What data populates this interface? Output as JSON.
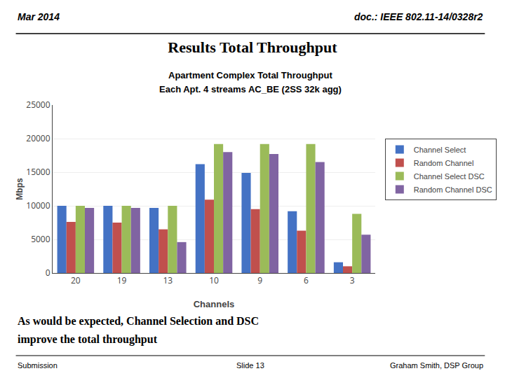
{
  "chart_data": {
    "type": "bar",
    "title": "Results Total Throughput",
    "annotations": [
      "Mar 2014",
      "doc.: IEEE 802.11-14/0328r2",
      "Apartment Complex Total Throughput",
      "Each Apt. 4 streams AC_BE (2SS 32k agg)",
      "As would be expected, Channel Selection and DSC",
      "improve the total throughput",
      "Submission",
      "Slide 13",
      "Graham Smith, DSP Group"
    ],
    "x_label": "Channels",
    "y_label": "Mbps",
    "categories": [
      "20",
      "19",
      "13",
      "10",
      "9",
      "6",
      "3"
    ],
    "series": [
      {
        "name": "Channel Select",
        "color": "#4472C4",
        "values": [
          10000,
          10000,
          9700,
          16200,
          14900,
          9200,
          1600
        ]
      },
      {
        "name": "Random Channel",
        "color": "#C0504D",
        "values": [
          7600,
          7500,
          6500,
          10900,
          9500,
          6300,
          1000
        ]
      },
      {
        "name": "Channel Select DSC",
        "color": "#9BBB59",
        "values": [
          10000,
          10000,
          10000,
          19200,
          19200,
          19200,
          8800
        ]
      },
      {
        "name": "Random Channel DSC",
        "color": "#8064A2",
        "values": [
          9700,
          9700,
          4600,
          18000,
          17700,
          16500,
          5700
        ]
      }
    ],
    "ylim": [
      0,
      25000
    ],
    "yticks": [
      0,
      5000,
      10000,
      15000,
      20000,
      25000
    ],
    "grid": true,
    "legend": "right"
  }
}
